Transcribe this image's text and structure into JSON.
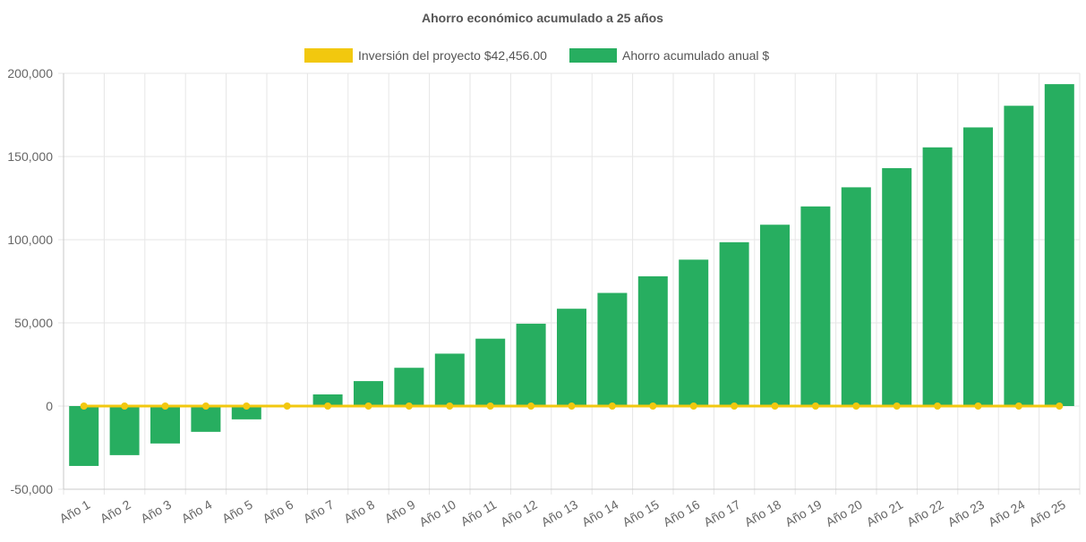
{
  "chart_data": {
    "type": "bar",
    "title": "Ahorro económico acumulado a 25 años",
    "legend_position": "top-center",
    "grid": true,
    "xlabel": "",
    "ylabel": "",
    "ylim": [
      -50000,
      200000
    ],
    "y_ticks": [
      200000,
      150000,
      100000,
      50000,
      0,
      -50000
    ],
    "y_tick_labels": [
      "200,000",
      "150,000",
      "100,000",
      "50,000",
      "0",
      "-50,000"
    ],
    "categories": [
      "Año 1",
      "Año 2",
      "Año 3",
      "Año 4",
      "Año 5",
      "Año 6",
      "Año 7",
      "Año 8",
      "Año 9",
      "Año 10",
      "Año 11",
      "Año 12",
      "Año 13",
      "Año 14",
      "Año 15",
      "Año 16",
      "Año 17",
      "Año 18",
      "Año 19",
      "Año 20",
      "Año 21",
      "Año 22",
      "Año 23",
      "Año 24",
      "Año 25"
    ],
    "series": [
      {
        "name": "Inversión del proyecto $42,456.00",
        "type": "line",
        "color": "#f2c80f",
        "values": [
          0,
          0,
          0,
          0,
          0,
          0,
          0,
          0,
          0,
          0,
          0,
          0,
          0,
          0,
          0,
          0,
          0,
          0,
          0,
          0,
          0,
          0,
          0,
          0,
          0
        ]
      },
      {
        "name": "Ahorro acumulado anual $",
        "type": "bar",
        "color": "#27ae60",
        "values": [
          -36000,
          -29500,
          -22500,
          -15500,
          -8000,
          0,
          7000,
          15000,
          23000,
          31500,
          40500,
          49500,
          58500,
          68000,
          78000,
          88000,
          98500,
          109000,
          120000,
          131500,
          143000,
          155500,
          167500,
          180500,
          193500
        ]
      }
    ]
  }
}
